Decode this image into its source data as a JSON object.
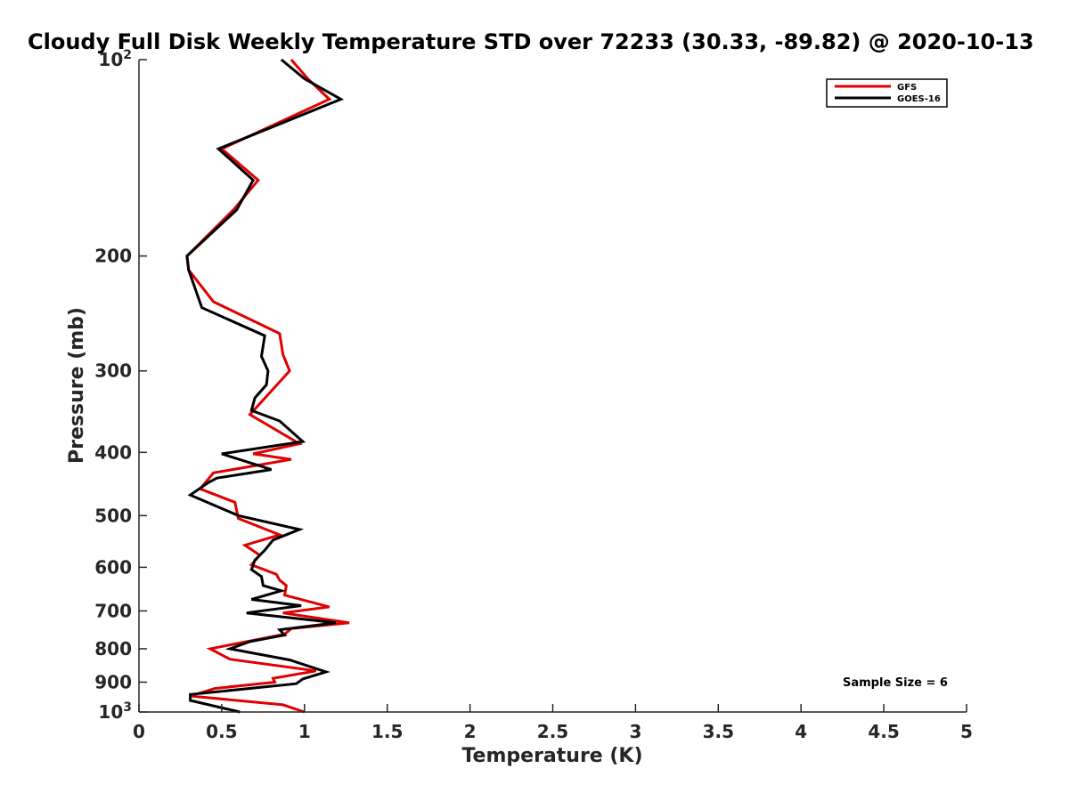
{
  "chart_data": {
    "type": "line",
    "title": "Cloudy Full Disk Weekly Temperature STD over 72233 (30.33, -89.82) @ 2020-10-13",
    "xlabel": "Temperature (K)",
    "ylabel": "Pressure (mb)",
    "xlim": [
      0,
      5
    ],
    "ylim": [
      100,
      1000
    ],
    "yscale": "log",
    "y_reversed": true,
    "x_ticks": [
      "0",
      "0.5",
      "1",
      "1.5",
      "2",
      "2.5",
      "3",
      "3.5",
      "4",
      "4.5",
      "5"
    ],
    "y_ticks": [
      {
        "value": 100,
        "base": "10",
        "exp": "2"
      },
      {
        "value": 200,
        "label": "200"
      },
      {
        "value": 300,
        "label": "300"
      },
      {
        "value": 400,
        "label": "400"
      },
      {
        "value": 500,
        "label": "500"
      },
      {
        "value": 600,
        "label": "600"
      },
      {
        "value": 700,
        "label": "700"
      },
      {
        "value": 800,
        "label": "800"
      },
      {
        "value": 900,
        "label": "900"
      },
      {
        "value": 1000,
        "base": "10",
        "exp": "3"
      }
    ],
    "legend_position": "top-right",
    "annotation": "Sample Size = 6",
    "series": [
      {
        "name": "GFS",
        "color": "#e00000",
        "x": [
          0.92,
          1.02,
          1.15,
          0.5,
          0.72,
          0.57,
          0.29,
          0.3,
          0.45,
          0.85,
          0.87,
          0.91,
          0.81,
          0.67,
          0.97,
          0.69,
          0.92,
          0.45,
          0.37,
          0.58,
          0.6,
          0.85,
          0.64,
          0.73,
          0.68,
          0.83,
          0.85,
          0.89,
          0.88,
          1.15,
          0.87,
          1.27,
          0.92,
          0.88,
          0.43,
          0.55,
          1.07,
          0.81,
          0.82,
          0.46,
          0.31,
          0.87,
          1.0
        ],
        "y": [
          100,
          107,
          115,
          137,
          153,
          170,
          200,
          210,
          235,
          263,
          283,
          300,
          320,
          350,
          388,
          402,
          410,
          430,
          455,
          477,
          505,
          535,
          555,
          575,
          595,
          615,
          628,
          640,
          662,
          690,
          705,
          730,
          745,
          760,
          800,
          830,
          865,
          888,
          900,
          920,
          945,
          975,
          1000
        ]
      },
      {
        "name": "GOES-16",
        "color": "#000000",
        "x": [
          0.86,
          1.0,
          1.22,
          0.48,
          0.69,
          0.59,
          0.29,
          0.3,
          0.38,
          0.76,
          0.74,
          0.78,
          0.77,
          0.7,
          0.68,
          0.85,
          0.99,
          0.5,
          0.8,
          0.47,
          0.42,
          0.31,
          0.6,
          0.97,
          0.81,
          0.76,
          0.7,
          0.68,
          0.74,
          0.75,
          0.86,
          0.68,
          0.98,
          0.65,
          1.19,
          0.85,
          0.88,
          0.67,
          0.55,
          0.91,
          1.13,
          0.99,
          0.95,
          0.31,
          0.31,
          0.61
        ],
        "y": [
          100,
          107,
          115,
          137,
          153,
          170,
          200,
          210,
          240,
          265,
          285,
          300,
          315,
          330,
          345,
          358,
          385,
          402,
          425,
          438,
          445,
          465,
          500,
          525,
          545,
          565,
          585,
          605,
          620,
          640,
          652,
          672,
          687,
          705,
          730,
          748,
          762,
          780,
          800,
          832,
          868,
          890,
          905,
          940,
          960,
          1000
        ]
      }
    ]
  }
}
